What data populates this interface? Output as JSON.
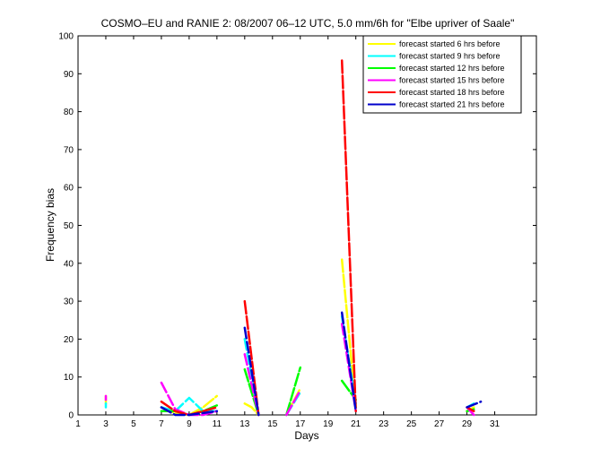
{
  "chart_data": {
    "type": "line",
    "title": "COSMO–EU and RANIE 2: 08/2007 06–12 UTC, 5.0 mm/6h for \"Elbe upriver of Saale\"",
    "xlabel": "Days",
    "ylabel": "Frequency bias",
    "xlim": [
      1,
      34
    ],
    "ylim": [
      0,
      100
    ],
    "xticks": [
      1,
      3,
      5,
      7,
      9,
      11,
      13,
      15,
      17,
      19,
      21,
      23,
      25,
      27,
      29,
      31
    ],
    "yticks": [
      0,
      10,
      20,
      30,
      40,
      50,
      60,
      70,
      80,
      90,
      100
    ],
    "legend_position": "top-right",
    "series": [
      {
        "name": "forecast started 6 hrs before",
        "color": "#ffff00",
        "points": [
          [
            3,
            5
          ],
          [
            3,
            3
          ],
          null,
          [
            7,
            2
          ],
          [
            8,
            0.5
          ],
          [
            9,
            0
          ],
          [
            10,
            2
          ],
          [
            11,
            5
          ],
          null,
          [
            13,
            3
          ],
          [
            13.5,
            2
          ],
          [
            14,
            0
          ],
          null,
          [
            16,
            0
          ],
          [
            17,
            7
          ],
          null,
          [
            20,
            41
          ],
          [
            21,
            2
          ],
          null,
          [
            29,
            1
          ],
          [
            29.5,
            2
          ]
        ]
      },
      {
        "name": "forecast started 9 hrs before",
        "color": "#00ffff",
        "points": [
          [
            3,
            3
          ],
          [
            3,
            2
          ],
          null,
          [
            7,
            2
          ],
          [
            8,
            1
          ],
          [
            9,
            4.5
          ],
          [
            10,
            1
          ],
          [
            11,
            1
          ],
          null,
          [
            13,
            20
          ],
          [
            14,
            0
          ],
          null,
          [
            16,
            0
          ],
          [
            17,
            6
          ],
          null,
          [
            20,
            26
          ],
          [
            21,
            3
          ],
          null,
          [
            29,
            2
          ],
          [
            29.5,
            3
          ]
        ]
      },
      {
        "name": "forecast started 12 hrs before",
        "color": "#00ff00",
        "points": [
          [
            7,
            1
          ],
          [
            8,
            1
          ],
          [
            9,
            0
          ],
          [
            10,
            1
          ],
          [
            11,
            2.5
          ],
          null,
          [
            13,
            12
          ],
          [
            14,
            0
          ],
          null,
          [
            16,
            0
          ],
          [
            17,
            12.5
          ],
          null,
          [
            20,
            9
          ],
          [
            21,
            4
          ],
          null,
          [
            29,
            1
          ],
          [
            29.5,
            1.5
          ]
        ]
      },
      {
        "name": "forecast started 15 hrs before",
        "color": "#ff00ff",
        "points": [
          [
            3,
            5
          ],
          [
            3,
            4
          ],
          null,
          [
            7,
            8.5
          ],
          [
            8,
            1.5
          ],
          [
            9,
            0
          ],
          [
            10,
            0
          ],
          [
            11,
            1
          ],
          null,
          [
            13,
            16
          ],
          [
            14,
            0
          ],
          null,
          [
            16,
            0
          ],
          [
            17,
            6.5
          ],
          null,
          [
            20,
            24
          ],
          [
            21,
            1
          ],
          null,
          [
            29,
            2
          ],
          [
            29.5,
            0
          ]
        ]
      },
      {
        "name": "forecast started 18 hrs before",
        "color": "#ff0000",
        "points": [
          [
            7,
            3.5
          ],
          [
            8,
            1
          ],
          [
            9,
            0
          ],
          [
            10,
            1
          ],
          [
            11,
            2
          ],
          null,
          [
            13,
            30
          ],
          [
            14,
            0
          ],
          null,
          [
            20,
            93.5
          ],
          [
            21,
            1
          ],
          null,
          [
            29,
            2
          ],
          [
            29.5,
            1
          ]
        ]
      },
      {
        "name": "forecast started 21 hrs before",
        "color": "#0000cc",
        "points": [
          [
            7,
            2
          ],
          [
            8,
            0
          ],
          [
            9,
            0
          ],
          [
            10,
            0.5
          ],
          [
            11,
            1
          ],
          null,
          [
            13,
            23
          ],
          [
            14,
            0
          ],
          null,
          [
            20,
            27
          ],
          [
            21,
            1
          ],
          null,
          [
            29,
            2
          ],
          [
            30,
            3.5
          ]
        ]
      }
    ]
  }
}
